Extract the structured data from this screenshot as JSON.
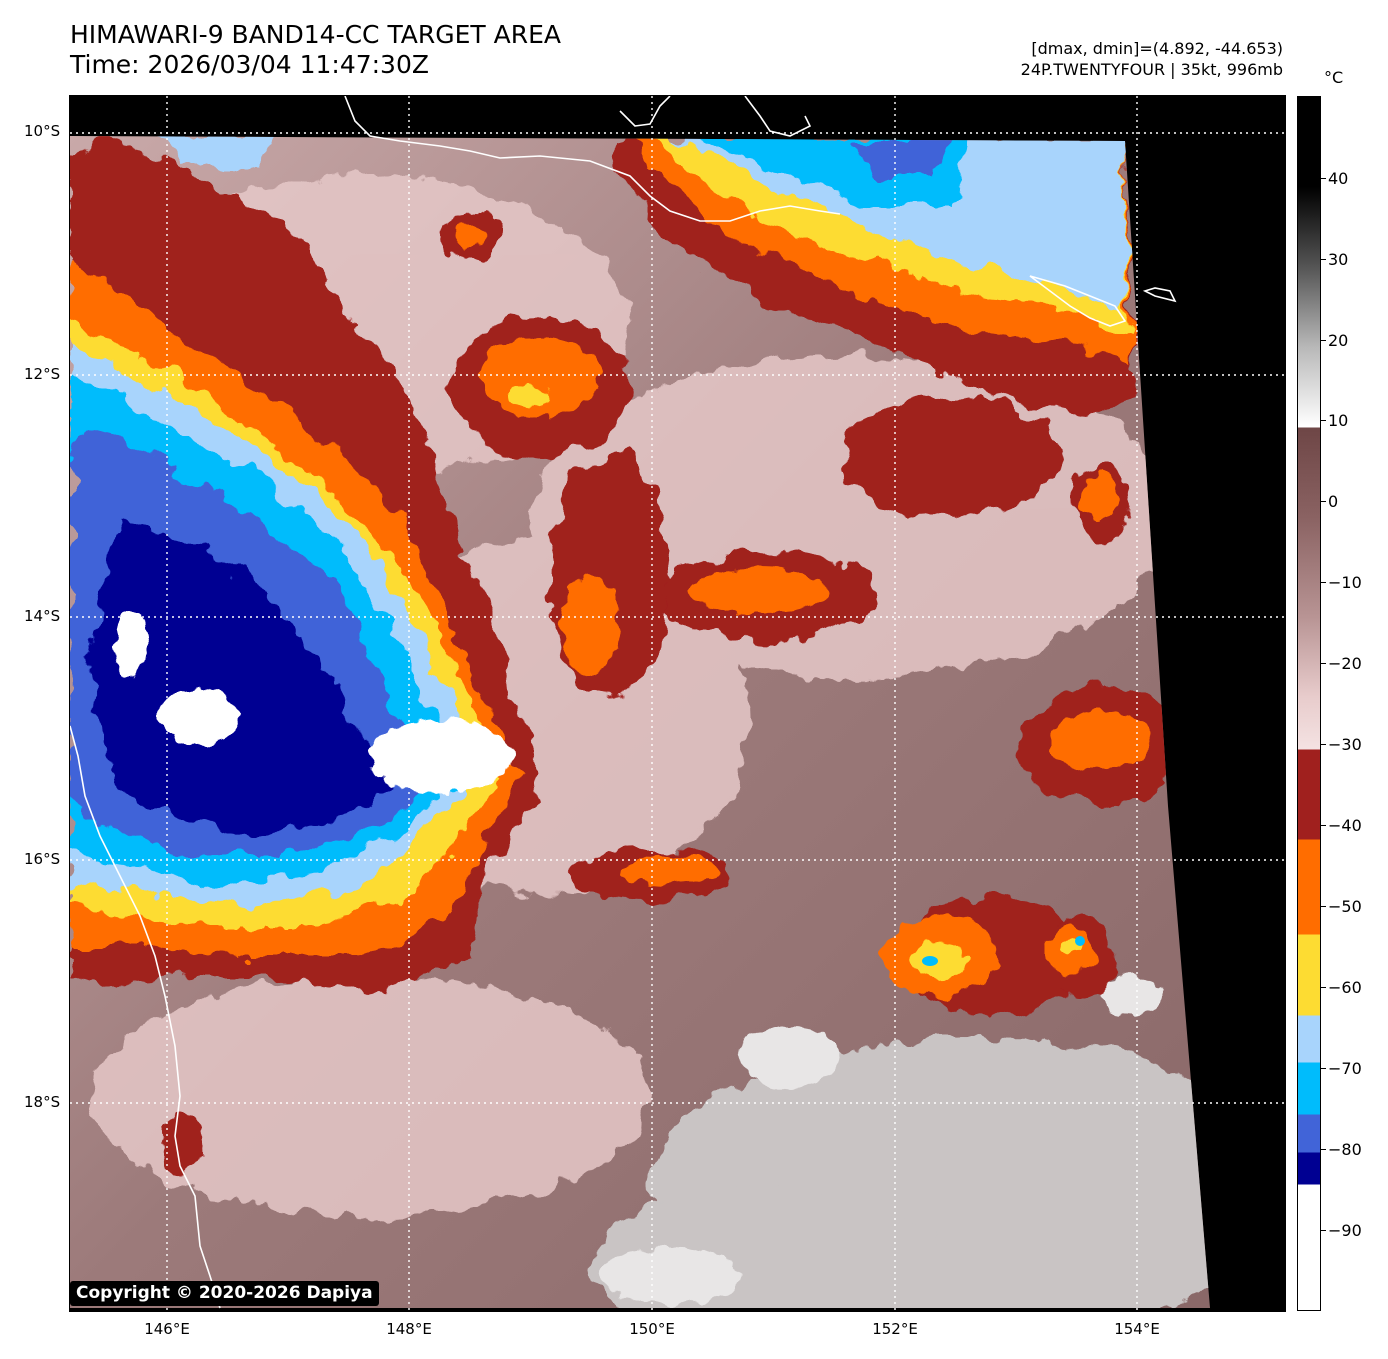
{
  "header": {
    "title": "HIMAWARI-9 BAND14-CC TARGET AREA",
    "time": "Time: 2026/03/04 11:47:30Z",
    "dmax_dmin": "[dmax, dmin]=(4.892, -44.653)",
    "storm": "24P.TWENTYFOUR | 35kt, 996mb"
  },
  "map": {
    "lat_labels": [
      "10°S",
      "12°S",
      "14°S",
      "16°S",
      "18°S"
    ],
    "lon_labels": [
      "146°E",
      "148°E",
      "150°E",
      "152°E",
      "154°E"
    ],
    "copyright": "Copyright © 2020-2026 Dapiya"
  },
  "colorbar": {
    "unit": "°C",
    "tick_labels": [
      "40",
      "30",
      "20",
      "10",
      "0",
      "−10",
      "−20",
      "−30",
      "−40",
      "−50",
      "−60",
      "−70",
      "−80",
      "−90"
    ],
    "colors": {
      "above_10": "#000000",
      "warm_gray": "#7a5050",
      "pink": "#e8cccc",
      "dark_red": "#a0201e",
      "orange": "#ff6d00",
      "yellow": "#fddc32",
      "light_blue": "#a8d4fc",
      "cyan": "#00bcfc",
      "blue": "#4164d8",
      "navy": "#000092",
      "white": "#ffffff"
    }
  }
}
